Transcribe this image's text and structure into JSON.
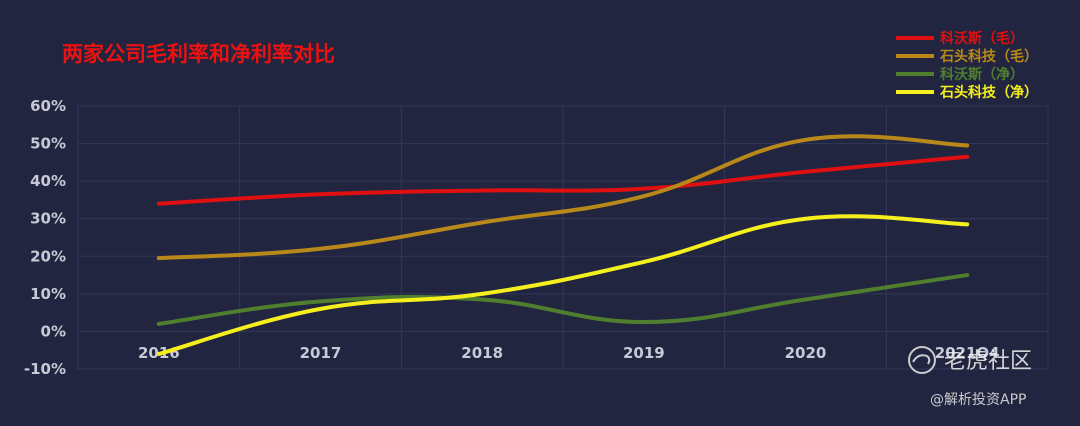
{
  "chart_data": {
    "type": "line",
    "title": "两家公司毛利率和净利率对比",
    "categories": [
      "2016",
      "2017",
      "2018",
      "2019",
      "2020",
      "2021Q4"
    ],
    "ylim": [
      -10,
      60
    ],
    "yticks": [
      "-10%",
      "0%",
      "10%",
      "20%",
      "30%",
      "40%",
      "50%",
      "60%"
    ],
    "grid": true,
    "legend_position": "top-right",
    "series": [
      {
        "name": "科沃斯（毛）",
        "values": [
          34,
          36.5,
          37.5,
          38,
          42.5,
          46.5
        ],
        "color": "#e01010"
      },
      {
        "name": "石头科技（毛）",
        "values": [
          19.5,
          22,
          29,
          36,
          51,
          49.5
        ],
        "color": "#b8891a"
      },
      {
        "name": "科沃斯（净）",
        "values": [
          2,
          8,
          8.5,
          2.5,
          8.5,
          15
        ],
        "color": "#4f7f2e"
      },
      {
        "name": "石头科技（净）",
        "values": [
          -6,
          6,
          10,
          18.5,
          30,
          28.5
        ],
        "color": "#f5ef1e"
      }
    ],
    "title_color": "#ee1111"
  },
  "watermark": {
    "brand": "老虎社区",
    "source": "@解析投资APP"
  }
}
